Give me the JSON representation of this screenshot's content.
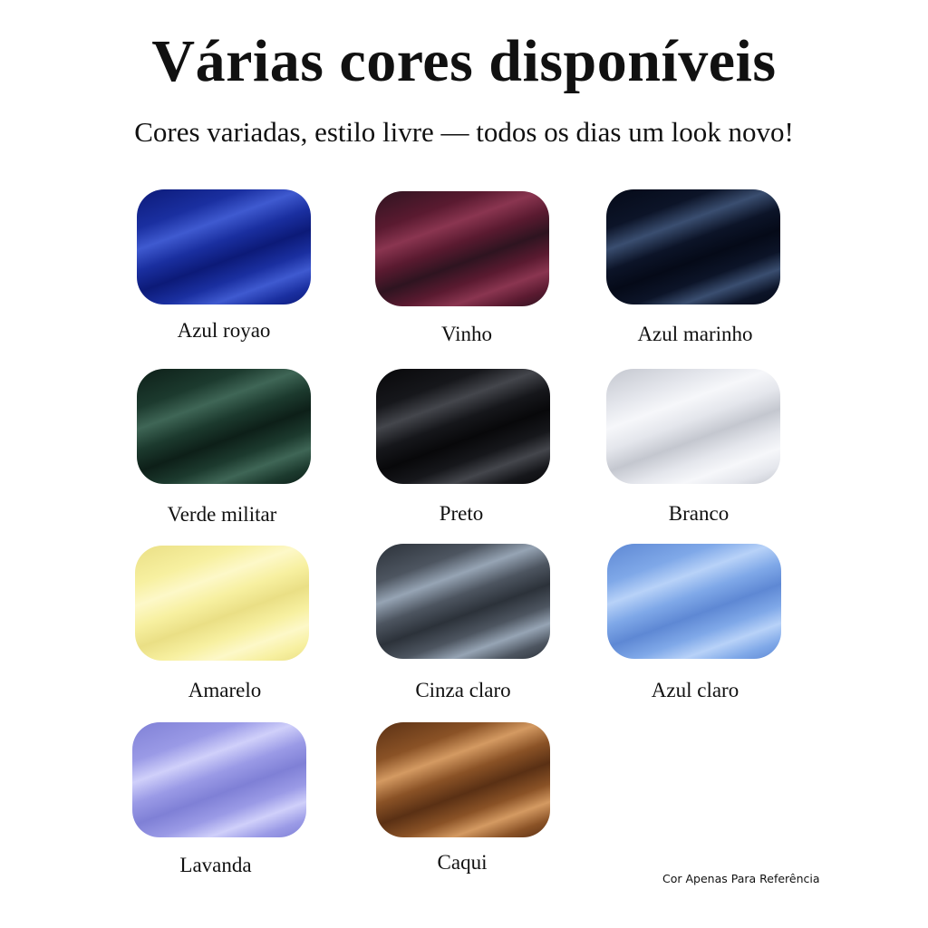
{
  "title": "Várias cores disponíveis",
  "subtitle": "Cores variadas, estilo livre — todos os dias um look novo!",
  "colors": [
    {
      "name": "Azul royao",
      "base": "#1a2fa0",
      "light": "#3f5ad0",
      "dark": "#0c1a78"
    },
    {
      "name": "Vinho",
      "base": "#5a1a30",
      "light": "#8a3550",
      "dark": "#2e1420"
    },
    {
      "name": "Azul marinho",
      "base": "#0c1428",
      "light": "#3a4e70",
      "dark": "#050a18"
    },
    {
      "name": "Verde militar",
      "base": "#1c3a2e",
      "light": "#3f6656",
      "dark": "#0d1f18"
    },
    {
      "name": "Preto",
      "base": "#16171b",
      "light": "#44464c",
      "dark": "#08080a"
    },
    {
      "name": "Branco",
      "base": "#e4e6ec",
      "light": "#f6f7fa",
      "dark": "#c4c7cf"
    },
    {
      "name": "Amarelo",
      "base": "#f7f0a0",
      "light": "#fdf8c8",
      "dark": "#eadf85"
    },
    {
      "name": "Cinza claro",
      "base": "#4d5560",
      "light": "#96a4b4",
      "dark": "#2c323a"
    },
    {
      "name": "Azul claro",
      "base": "#7fa8e8",
      "light": "#b8d2f8",
      "dark": "#5e88d4"
    },
    {
      "name": "Lavanda",
      "base": "#9a9ae6",
      "light": "#d0d0fa",
      "dark": "#7f80d6"
    },
    {
      "name": "Caqui",
      "base": "#8a5226",
      "light": "#d49a62",
      "dark": "#5a3014"
    }
  ],
  "note": "Cor Apenas Para Referência"
}
